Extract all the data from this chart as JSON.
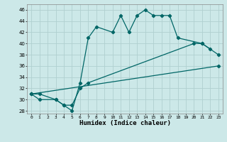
{
  "xlabel": "Humidex (Indice chaleur)",
  "bg_color": "#cce8e8",
  "grid_color": "#b0d0d0",
  "line_color": "#006666",
  "ylim": [
    27.5,
    47.0
  ],
  "xlim": [
    -0.5,
    23.5
  ],
  "yticks": [
    28,
    30,
    32,
    34,
    36,
    38,
    40,
    42,
    44,
    46
  ],
  "xticks": [
    0,
    1,
    2,
    3,
    4,
    5,
    6,
    7,
    8,
    9,
    10,
    11,
    12,
    13,
    14,
    15,
    16,
    17,
    18,
    19,
    20,
    21,
    22,
    23
  ],
  "line1_x": [
    0,
    1,
    3,
    4,
    5,
    6,
    7,
    8,
    10,
    11,
    12,
    13,
    14,
    15,
    16,
    17,
    18,
    21,
    22
  ],
  "line1_y": [
    31,
    31,
    30,
    29,
    28,
    33,
    41,
    43,
    42,
    45,
    42,
    45,
    46,
    45,
    45,
    45,
    41,
    40,
    39
  ],
  "line2_x": [
    0,
    1,
    3,
    4,
    5,
    6,
    7,
    20,
    21,
    23
  ],
  "line2_y": [
    31,
    30,
    30,
    29,
    29,
    32,
    33,
    40,
    40,
    38
  ],
  "line3_x": [
    0,
    23
  ],
  "line3_y": [
    31,
    36
  ],
  "lw": 0.9,
  "ms": 2.2
}
